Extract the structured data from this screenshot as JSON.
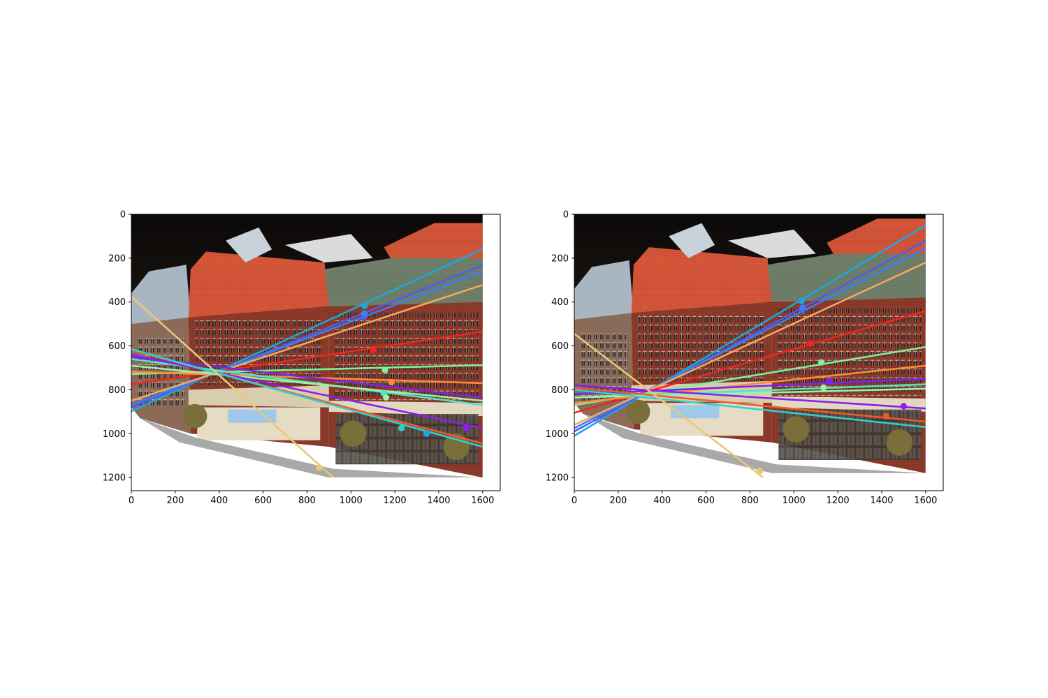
{
  "chart_data": [
    {
      "type": "scatter",
      "description_free": true,
      "xlim": [
        0,
        1680
      ],
      "ylim": [
        1260,
        0
      ],
      "image_extent": {
        "width": 1600,
        "height": 1200
      },
      "x_ticks": [
        "0",
        "200",
        "400",
        "600",
        "800",
        "1000",
        "1200",
        "1400",
        "1600"
      ],
      "x_tick_values": [
        0,
        200,
        400,
        600,
        800,
        1000,
        1200,
        1400,
        1600
      ],
      "y_ticks": [
        "0",
        "200",
        "400",
        "600",
        "800",
        "1000",
        "1200"
      ],
      "y_tick_values": [
        0,
        200,
        400,
        600,
        800,
        1000,
        1200
      ],
      "epilines": [
        {
          "color": "#1aa8e0",
          "y0": 898,
          "y1": 158
        },
        {
          "color": "#4f5cf0",
          "y0": 878,
          "y1": 232
        },
        {
          "color": "#3d7ef0",
          "y0": 868,
          "y1": 262
        },
        {
          "color": "#f4a860",
          "y0": 850,
          "y1": 322
        },
        {
          "color": "#f0261c",
          "y0": 775,
          "y1": 535
        },
        {
          "color": "#7ef09a",
          "y0": 728,
          "y1": 688
        },
        {
          "color": "#ff8c3a",
          "y0": 718,
          "y1": 770
        },
        {
          "color": "#7a24f0",
          "y0": 650,
          "y1": 835
        },
        {
          "color": "#4fe8c4",
          "y0": 660,
          "y1": 870
        },
        {
          "color": "#9ff0a8",
          "y0": 690,
          "y1": 850
        },
        {
          "color": "#8a1ff0",
          "y0": 640,
          "y1": 975
        },
        {
          "color": "#f05a2a",
          "y0": 620,
          "y1": 1045
        },
        {
          "color": "#30d0d0",
          "y0": 615,
          "y1": 1060
        },
        {
          "color": "#e8c878",
          "x0": 0,
          "y0": 375,
          "x1": 920,
          "y1": 1200
        }
      ],
      "points": [
        {
          "x": 1062,
          "y": 418,
          "color": "#1aa8e0"
        },
        {
          "x": 1058,
          "y": 468,
          "color": "#4f5cf0"
        },
        {
          "x": 1060,
          "y": 452,
          "color": "#3d7ef0"
        },
        {
          "x": 1100,
          "y": 620,
          "color": "#f0261c"
        },
        {
          "x": 1155,
          "y": 710,
          "color": "#7ef09a"
        },
        {
          "x": 1185,
          "y": 765,
          "color": "#ff8c3a"
        },
        {
          "x": 1150,
          "y": 815,
          "color": "#4fe8c4"
        },
        {
          "x": 1160,
          "y": 835,
          "color": "#9ff0a8"
        },
        {
          "x": 1525,
          "y": 975,
          "color": "#8a1ff0"
        },
        {
          "x": 1230,
          "y": 975,
          "color": "#30d0d0"
        },
        {
          "x": 1345,
          "y": 1000,
          "color": "#1aa8e0"
        },
        {
          "x": 855,
          "y": 1155,
          "color": "#e8c878"
        }
      ]
    },
    {
      "type": "scatter",
      "xlim": [
        0,
        1680
      ],
      "ylim": [
        1260,
        0
      ],
      "image_extent": {
        "width": 1600,
        "height": 1200
      },
      "x_ticks": [
        "0",
        "200",
        "400",
        "600",
        "800",
        "1000",
        "1200",
        "1400",
        "1600"
      ],
      "x_tick_values": [
        0,
        200,
        400,
        600,
        800,
        1000,
        1200,
        1400,
        1600
      ],
      "y_ticks": [
        "0",
        "200",
        "400",
        "600",
        "800",
        "1000",
        "1200"
      ],
      "y_tick_values": [
        0,
        200,
        400,
        600,
        800,
        1000,
        1200
      ],
      "epilines": [
        {
          "color": "#1aa8e0",
          "y0": 1010,
          "y1": 50
        },
        {
          "color": "#4f5cf0",
          "y0": 990,
          "y1": 120
        },
        {
          "color": "#3d7ef0",
          "y0": 975,
          "y1": 155
        },
        {
          "color": "#f4a860",
          "y0": 960,
          "y1": 220
        },
        {
          "color": "#f0261c",
          "y0": 905,
          "y1": 440
        },
        {
          "color": "#7ef09a",
          "y0": 870,
          "y1": 605
        },
        {
          "color": "#ff8c3a",
          "y0": 860,
          "y1": 690
        },
        {
          "color": "#7a24f0",
          "y0": 820,
          "y1": 750
        },
        {
          "color": "#4fe8c4",
          "y0": 835,
          "y1": 775
        },
        {
          "color": "#9ff0a8",
          "y0": 835,
          "y1": 795
        },
        {
          "color": "#8a1ff0",
          "y0": 780,
          "y1": 885
        },
        {
          "color": "#f05a2a",
          "y0": 790,
          "y1": 945
        },
        {
          "color": "#30d0d0",
          "y0": 800,
          "y1": 970
        },
        {
          "color": "#e8c878",
          "x0": 0,
          "y0": 545,
          "x1": 860,
          "y1": 1200
        }
      ],
      "points": [
        {
          "x": 1035,
          "y": 395,
          "color": "#1aa8e0"
        },
        {
          "x": 1038,
          "y": 440,
          "color": "#4f5cf0"
        },
        {
          "x": 1040,
          "y": 425,
          "color": "#3d7ef0"
        },
        {
          "x": 1075,
          "y": 590,
          "color": "#f0261c"
        },
        {
          "x": 1125,
          "y": 675,
          "color": "#7ef09a"
        },
        {
          "x": 1160,
          "y": 760,
          "color": "#7a24f0"
        },
        {
          "x": 1135,
          "y": 790,
          "color": "#9ff0a8"
        },
        {
          "x": 1500,
          "y": 875,
          "color": "#8a1ff0"
        },
        {
          "x": 1420,
          "y": 920,
          "color": "#f05a2a"
        },
        {
          "x": 845,
          "y": 1170,
          "color": "#e8c878"
        }
      ]
    }
  ]
}
